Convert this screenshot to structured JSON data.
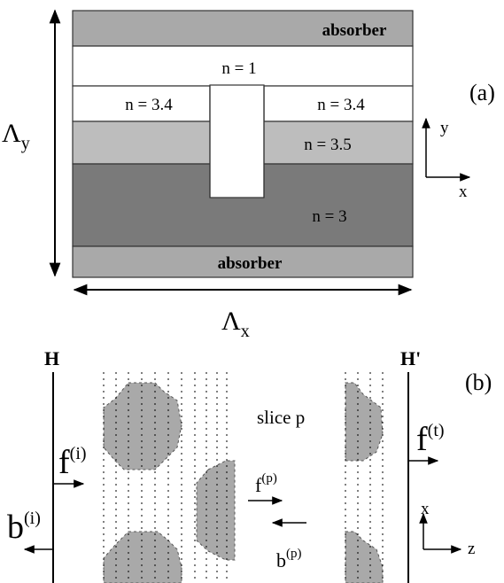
{
  "panel_a": {
    "layers": {
      "absorber_top": "absorber",
      "air": "n = 1",
      "left": "n = 3.4",
      "right": "n = 3.4",
      "guide": "n = 3.5",
      "substrate": "n = 3",
      "absorber_bottom": "absorber"
    },
    "label": "(a)",
    "period_y": {
      "base": "Λ",
      "sub": "y"
    },
    "period_x": {
      "base": "Λ",
      "sub": "x"
    },
    "axis_y": "y",
    "axis_x": "x"
  },
  "panel_b": {
    "label": "(b)",
    "input_plane": "H",
    "output_plane": "H'",
    "slice": "slice p",
    "f_in": {
      "base": "f",
      "sup": "(i)"
    },
    "b_in": {
      "base": "b",
      "sup": "(i)"
    },
    "f_slice": {
      "base": "f",
      "sup": "(p)"
    },
    "b_slice": {
      "base": "b",
      "sup": "(p)"
    },
    "f_out": {
      "base": "f",
      "sup": "(t)"
    },
    "axis_x": "x",
    "axis_z": "z"
  }
}
